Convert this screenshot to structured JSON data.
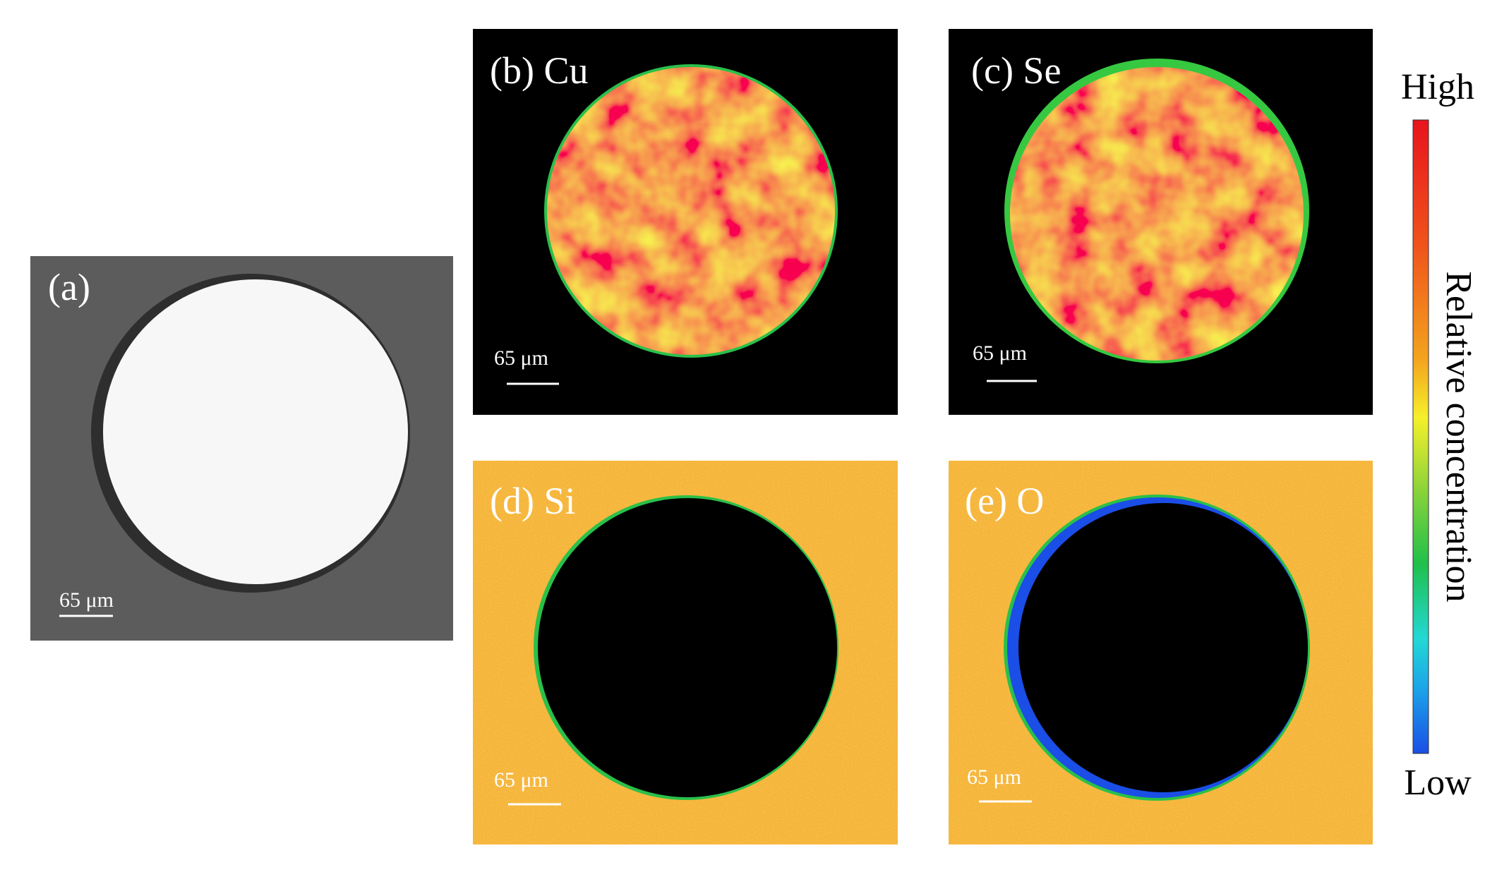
{
  "panels": [
    {
      "label": "(a)",
      "scale_bar": "65 μm"
    },
    {
      "label": "(b) Cu",
      "scale_bar": "65 μm"
    },
    {
      "label": "(c) Se",
      "scale_bar": "65 μm"
    },
    {
      "label": "(d) Si",
      "scale_bar": "65 μm"
    },
    {
      "label": "(e) O",
      "scale_bar": "65 μm"
    }
  ],
  "colorbar": {
    "high": "High",
    "low": "Low",
    "title": "Relative concentration"
  }
}
